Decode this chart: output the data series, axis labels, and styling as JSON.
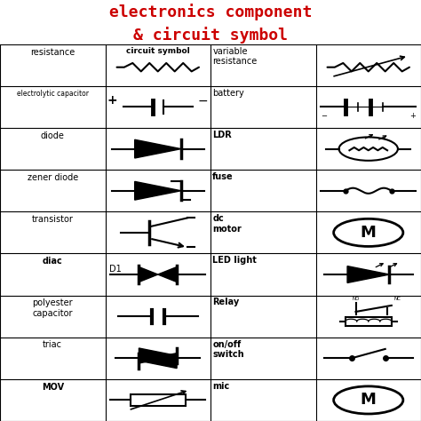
{
  "title_line1": "electronics component",
  "title_line2": "& circuit symbol",
  "title_color": "#cc0000",
  "title_fontsize": 13,
  "bg_color": "#ffffff",
  "n_rows": 9,
  "n_cols": 4,
  "col0_labels": [
    "resistance",
    "electrolytic capacitor",
    "diode",
    "zener diode",
    "transistor",
    "diac",
    "polyester\ncapacitor",
    "triac",
    "MOV"
  ],
  "col1_label": "circuit symbol",
  "col2_labels": [
    "variable\nresistance",
    "battery",
    "LDR",
    "fuse",
    "dc\nmotor",
    "LED light",
    "Relay",
    "on/off\nswitch",
    "mic"
  ],
  "col2_bold": [
    false,
    false,
    true,
    true,
    false,
    false,
    false,
    false,
    false
  ],
  "symbol_color": "#000000",
  "grid_lw": 0.8
}
